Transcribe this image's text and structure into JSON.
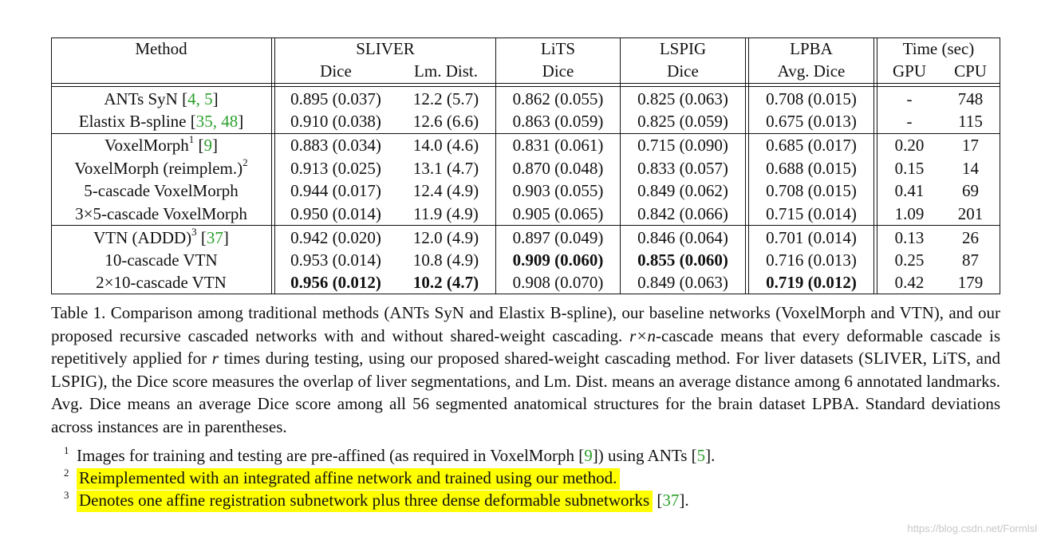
{
  "table": {
    "header": {
      "method": "Method",
      "sliver": "SLIVER",
      "lits": "LiTS",
      "lspig": "LSPIG",
      "lpba": "LPBA",
      "time": "Time (sec)",
      "dice": "Dice",
      "lm_dist": "Lm. Dist.",
      "avg_dice": "Avg. Dice",
      "gpu": "GPU",
      "cpu": "CPU"
    },
    "rows": [
      {
        "method": "ANTs SyN [",
        "cite": "4, 5",
        "suffix": "]",
        "sliver_dice": "0.895 (0.037)",
        "lm": "12.2 (5.7)",
        "lits": "0.862 (0.055)",
        "lspig": "0.825 (0.063)",
        "lpba": "0.708 (0.015)",
        "gpu": "-",
        "cpu": "748"
      },
      {
        "method": "Elastix B-spline [",
        "cite": "35, 48",
        "suffix": "]",
        "sliver_dice": "0.910 (0.038)",
        "lm": "12.6 (6.6)",
        "lits": "0.863 (0.059)",
        "lspig": "0.825 (0.059)",
        "lpba": "0.675 (0.013)",
        "gpu": "-",
        "cpu": "115"
      },
      {
        "method": "VoxelMorph",
        "sup": "1",
        "pre": " [",
        "cite": "9",
        "suffix": "]",
        "sliver_dice": "0.883 (0.034)",
        "lm": "14.0 (4.6)",
        "lits": "0.831 (0.061)",
        "lspig": "0.715 (0.090)",
        "lpba": "0.685 (0.017)",
        "gpu": "0.20",
        "cpu": "17"
      },
      {
        "method": "VoxelMorph (reimplem.)",
        "sup": "2",
        "sliver_dice": "0.913 (0.025)",
        "lm": "13.1 (4.7)",
        "lits": "0.870 (0.048)",
        "lspig": "0.833 (0.057)",
        "lpba": "0.688 (0.015)",
        "gpu": "0.15",
        "cpu": "14"
      },
      {
        "method": "5-cascade VoxelMorph",
        "sliver_dice": "0.944 (0.017)",
        "lm": "12.4 (4.9)",
        "lits": "0.903 (0.055)",
        "lspig": "0.849 (0.062)",
        "lpba": "0.708 (0.015)",
        "gpu": "0.41",
        "cpu": "69"
      },
      {
        "method": "3×5-cascade VoxelMorph",
        "sliver_dice": "0.950 (0.014)",
        "lm": "11.9 (4.9)",
        "lits": "0.905 (0.065)",
        "lspig": "0.842 (0.066)",
        "lpba": "0.715 (0.014)",
        "gpu": "1.09",
        "cpu": "201"
      },
      {
        "method": "VTN (ADDD)",
        "sup": "3",
        "pre": " [",
        "cite": "37",
        "suffix": "]",
        "sliver_dice": "0.942 (0.020)",
        "lm": "12.0 (4.9)",
        "lits": "0.897 (0.049)",
        "lspig": "0.846 (0.064)",
        "lpba": "0.701 (0.014)",
        "gpu": "0.13",
        "cpu": "26"
      },
      {
        "method": "10-cascade VTN",
        "sliver_dice": "0.953 (0.014)",
        "lm": "10.8 (4.9)",
        "lits": "0.909 (0.060)",
        "lspig": "0.855 (0.060)",
        "lpba": "0.716 (0.013)",
        "gpu": "0.25",
        "cpu": "87",
        "bold": [
          "lits",
          "lspig"
        ]
      },
      {
        "method": "2×10-cascade VTN",
        "sliver_dice": "0.956 (0.012)",
        "lm": "10.2 (4.7)",
        "lits": "0.908 (0.070)",
        "lspig": "0.849 (0.063)",
        "lpba": "0.719 (0.012)",
        "gpu": "0.42",
        "cpu": "179",
        "bold": [
          "sliver_dice",
          "lm",
          "lpba"
        ]
      }
    ]
  },
  "caption": {
    "lead": "Table 1. Comparison among traditional methods (ANTs SyN and Elastix B-spline), our baseline networks (VoxelMorph and VTN), and our proposed recursive cascaded networks with and without shared-weight cascading.",
    "math": "r×n",
    "mid": "-cascade means that every deformable cascade is repetitively applied for",
    "r": "r",
    "tail": "times during testing, using our proposed shared-weight cascading method. For liver datasets (SLIVER, LiTS, and LSPIG), the Dice score measures the overlap of liver segmentations, and Lm. Dist. means an average distance among 6 annotated landmarks.  Avg. Dice means an average Dice score among all 56 segmented anatomical structures for the brain dataset LPBA. Standard deviations across instances are in parentheses."
  },
  "footnotes": [
    {
      "num": "1",
      "text": "Images for training and testing are pre-affined (as required in VoxelMorph [",
      "cite1": "9",
      "mid": "]) using ANTs [",
      "cite2": "5",
      "end": "]."
    },
    {
      "num": "2",
      "text": "Reimplemented with an integrated affine network and trained using our method."
    },
    {
      "num": "3",
      "text": "Denotes one affine registration subnetwork plus three dense deformable subnetworks",
      "cite1": "37",
      "pre": " [",
      "end": "]."
    }
  ],
  "watermark": "https://blog.csdn.net/Formlsl",
  "colors": {
    "citation": "#2ca02c",
    "highlight": "#ffff00",
    "watermark": "#c8c8c8"
  }
}
